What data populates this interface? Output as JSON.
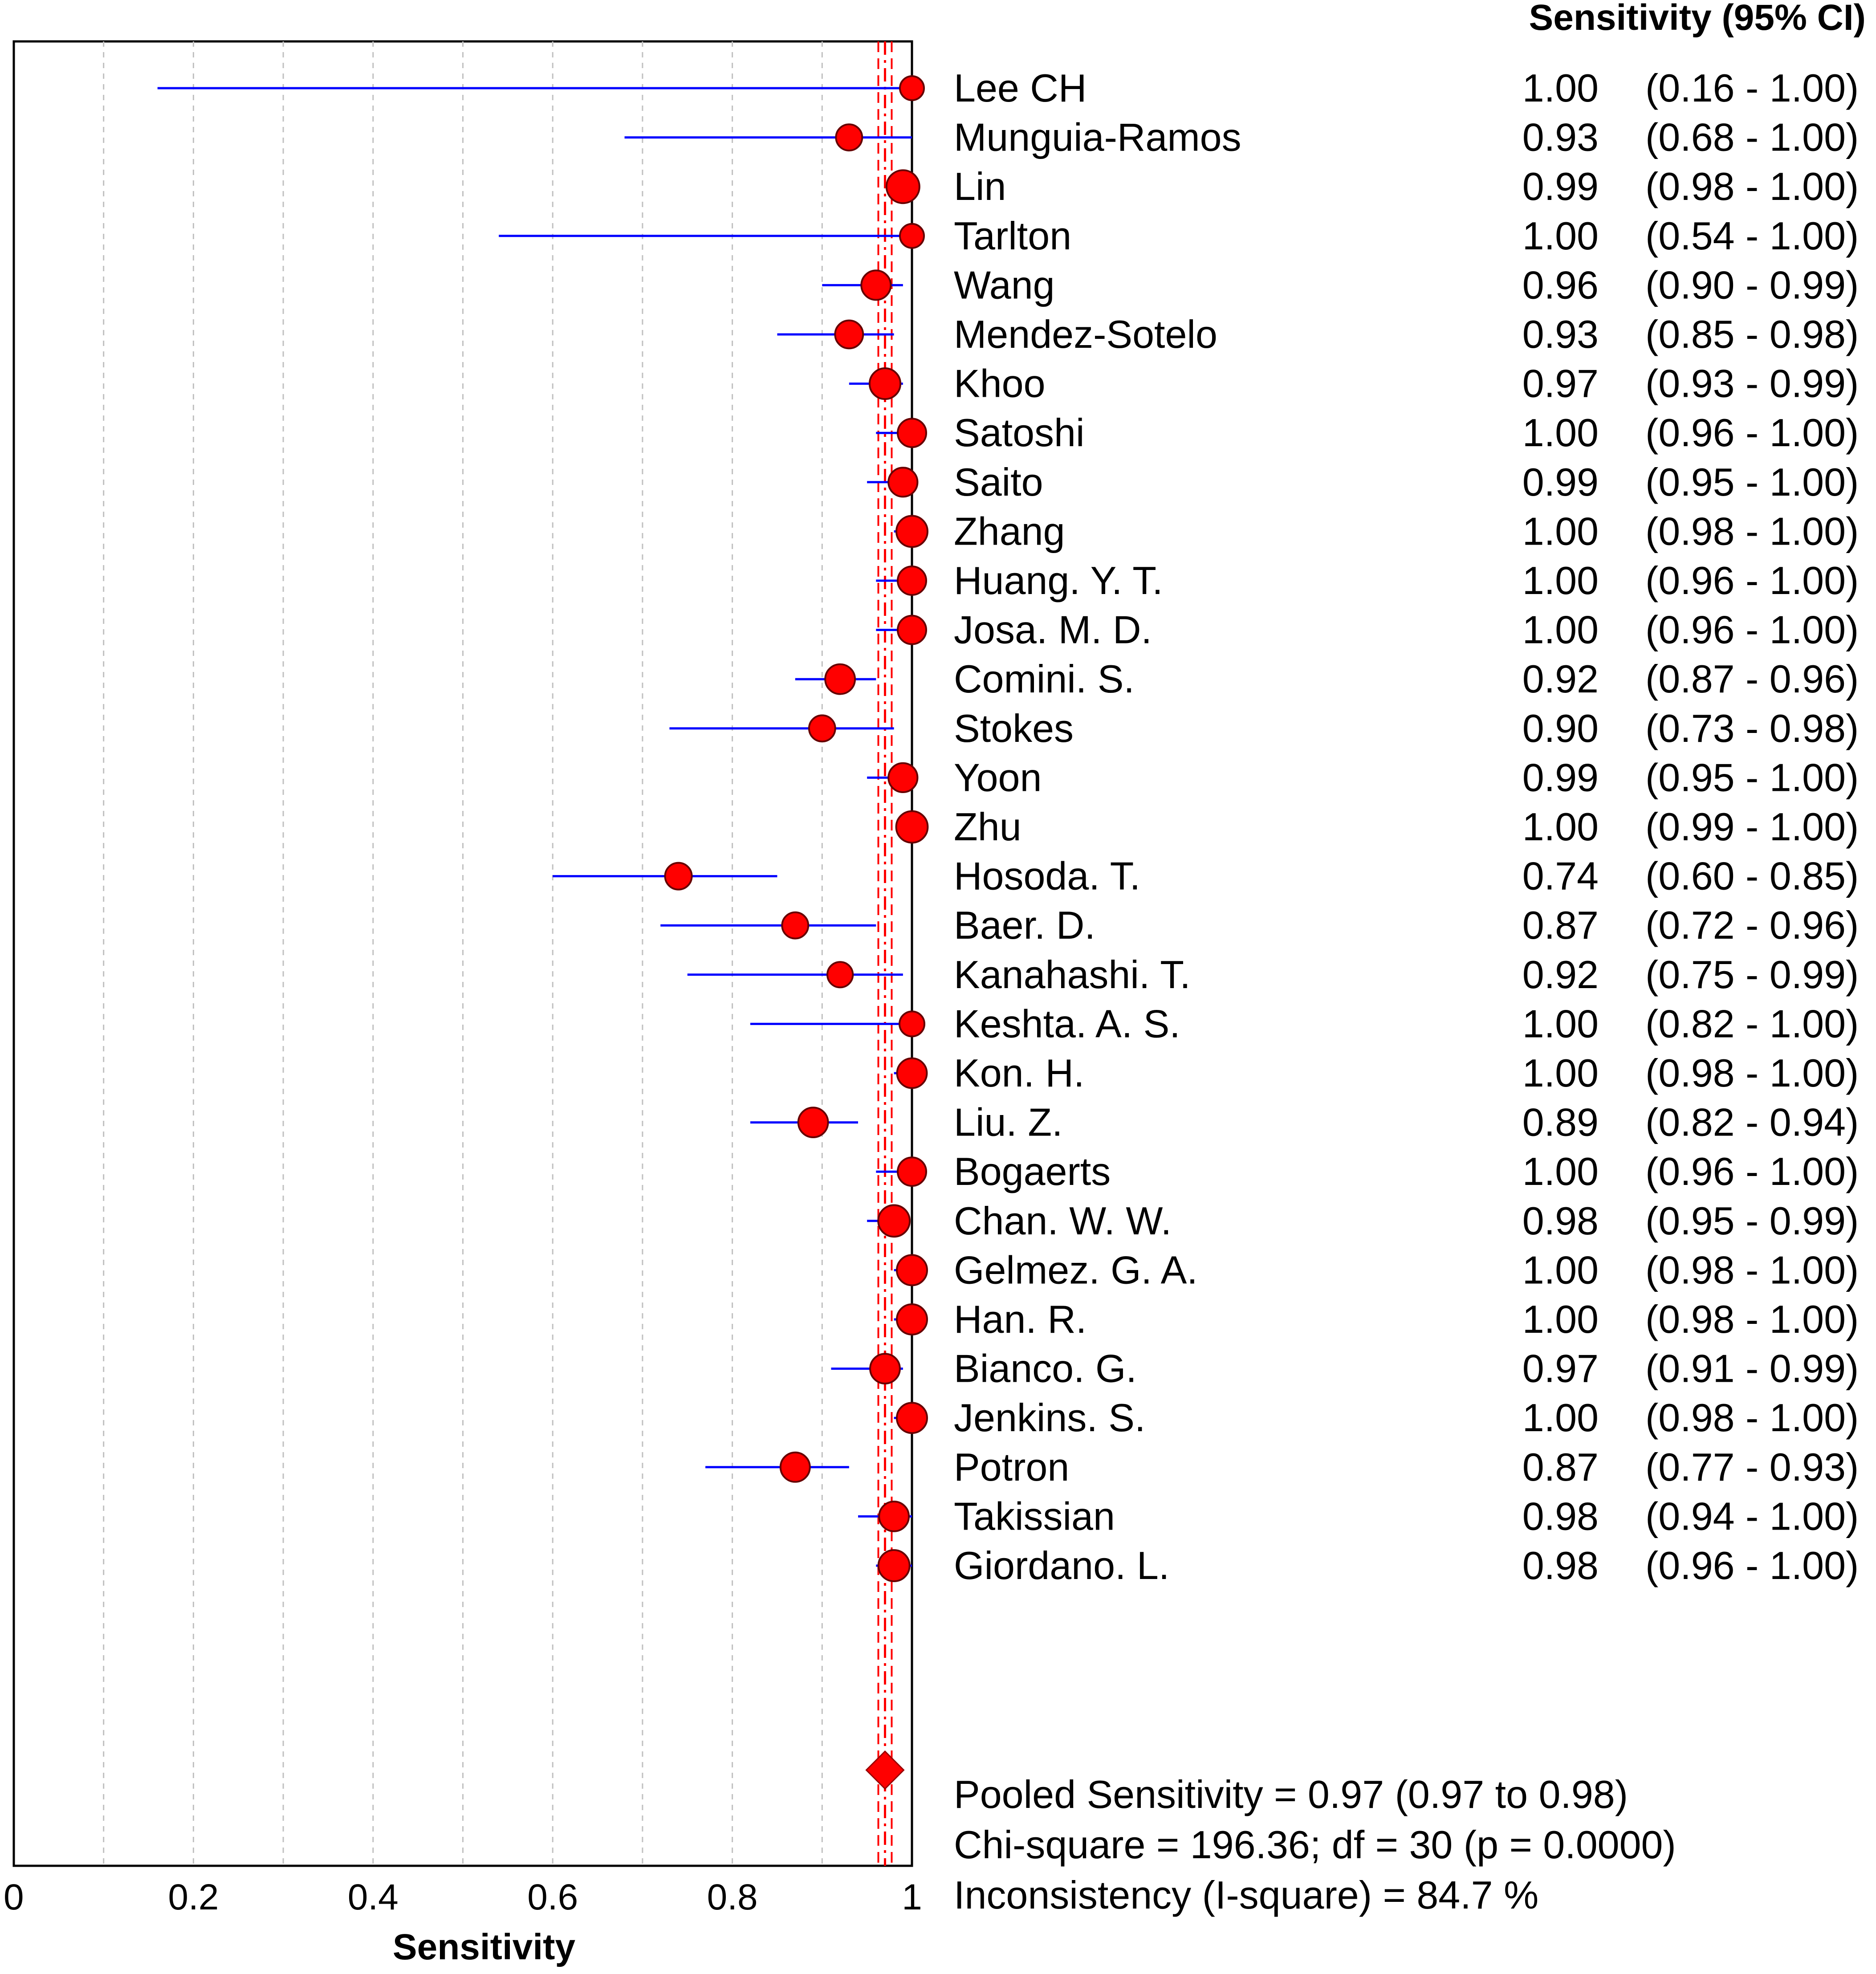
{
  "chart_data": {
    "type": "forest",
    "title": "Sensitivity (95% CI)",
    "xlabel": "Sensitivity",
    "xlim": [
      0,
      1
    ],
    "xticks": [
      "0",
      "0.2",
      "0.4",
      "0.6",
      "0.8",
      "1"
    ],
    "studies": [
      {
        "name": "Lee CH",
        "value": "1.00",
        "ci": "(0.16 - 1.00)",
        "est": 1.0,
        "lo": 0.16,
        "hi": 1.0,
        "weight": 0.5
      },
      {
        "name": "Munguia-Ramos",
        "value": "0.93",
        "ci": "(0.68 - 1.00)",
        "est": 0.93,
        "lo": 0.68,
        "hi": 1.0,
        "weight": 0.62
      },
      {
        "name": "Lin",
        "value": "0.99",
        "ci": "(0.98 - 1.00)",
        "est": 0.99,
        "lo": 0.98,
        "hi": 1.0,
        "weight": 1.0
      },
      {
        "name": "Tarlton",
        "value": "1.00",
        "ci": "(0.54 - 1.00)",
        "est": 1.0,
        "lo": 0.54,
        "hi": 1.0,
        "weight": 0.5
      },
      {
        "name": "Wang",
        "value": "0.96",
        "ci": "(0.90 - 0.99)",
        "est": 0.96,
        "lo": 0.9,
        "hi": 0.99,
        "weight": 0.8
      },
      {
        "name": "Mendez-Sotelo",
        "value": "0.93",
        "ci": "(0.85 - 0.98)",
        "est": 0.93,
        "lo": 0.85,
        "hi": 0.98,
        "weight": 0.72
      },
      {
        "name": "Khoo",
        "value": "0.97",
        "ci": "(0.93 - 0.99)",
        "est": 0.97,
        "lo": 0.93,
        "hi": 0.99,
        "weight": 0.88
      },
      {
        "name": "Satoshi",
        "value": "1.00",
        "ci": "(0.96 - 1.00)",
        "est": 1.0,
        "lo": 0.96,
        "hi": 1.0,
        "weight": 0.75
      },
      {
        "name": "Saito",
        "value": "0.99",
        "ci": "(0.95 - 1.00)",
        "est": 0.99,
        "lo": 0.95,
        "hi": 1.0,
        "weight": 0.78
      },
      {
        "name": "Zhang",
        "value": "1.00",
        "ci": "(0.98 - 1.00)",
        "est": 1.0,
        "lo": 0.98,
        "hi": 1.0,
        "weight": 0.9
      },
      {
        "name": "Huang. Y. T.",
        "value": "1.00",
        "ci": "(0.96 - 1.00)",
        "est": 1.0,
        "lo": 0.96,
        "hi": 1.0,
        "weight": 0.75
      },
      {
        "name": "Josa. M. D.",
        "value": "1.00",
        "ci": "(0.96 - 1.00)",
        "est": 1.0,
        "lo": 0.96,
        "hi": 1.0,
        "weight": 0.75
      },
      {
        "name": "Comini. S.",
        "value": "0.92",
        "ci": "(0.87 - 0.96)",
        "est": 0.92,
        "lo": 0.87,
        "hi": 0.96,
        "weight": 0.82
      },
      {
        "name": "Stokes",
        "value": "0.90",
        "ci": "(0.73 - 0.98)",
        "est": 0.9,
        "lo": 0.73,
        "hi": 0.98,
        "weight": 0.62
      },
      {
        "name": "Yoon",
        "value": "0.99",
        "ci": "(0.95 - 1.00)",
        "est": 0.99,
        "lo": 0.95,
        "hi": 1.0,
        "weight": 0.78
      },
      {
        "name": "Zhu",
        "value": "1.00",
        "ci": "(0.99 - 1.00)",
        "est": 1.0,
        "lo": 0.99,
        "hi": 1.0,
        "weight": 0.92
      },
      {
        "name": "Hosoda. T.",
        "value": "0.74",
        "ci": "(0.60 - 0.85)",
        "est": 0.74,
        "lo": 0.6,
        "hi": 0.85,
        "weight": 0.65
      },
      {
        "name": "Baer. D.",
        "value": "0.87",
        "ci": "(0.72 - 0.96)",
        "est": 0.87,
        "lo": 0.72,
        "hi": 0.96,
        "weight": 0.62
      },
      {
        "name": "Kanahashi. T.",
        "value": "0.92",
        "ci": "(0.75 - 0.99)",
        "est": 0.92,
        "lo": 0.75,
        "hi": 0.99,
        "weight": 0.58
      },
      {
        "name": "Keshta. A. S.",
        "value": "1.00",
        "ci": "(0.82 - 1.00)",
        "est": 1.0,
        "lo": 0.82,
        "hi": 1.0,
        "weight": 0.55
      },
      {
        "name": "Kon. H.",
        "value": "1.00",
        "ci": "(0.98 - 1.00)",
        "est": 1.0,
        "lo": 0.98,
        "hi": 1.0,
        "weight": 0.82
      },
      {
        "name": "Liu. Z.",
        "value": "0.89",
        "ci": "(0.82 - 0.94)",
        "est": 0.89,
        "lo": 0.82,
        "hi": 0.94,
        "weight": 0.82
      },
      {
        "name": "Bogaerts",
        "value": "1.00",
        "ci": "(0.96 - 1.00)",
        "est": 1.0,
        "lo": 0.96,
        "hi": 1.0,
        "weight": 0.75
      },
      {
        "name": "Chan. W. W.",
        "value": "0.98",
        "ci": "(0.95 - 0.99)",
        "est": 0.98,
        "lo": 0.95,
        "hi": 0.99,
        "weight": 0.92
      },
      {
        "name": "Gelmez. G. A.",
        "value": "1.00",
        "ci": "(0.98 - 1.00)",
        "est": 1.0,
        "lo": 0.98,
        "hi": 1.0,
        "weight": 0.85
      },
      {
        "name": "Han. R.",
        "value": "1.00",
        "ci": "(0.98 - 1.00)",
        "est": 1.0,
        "lo": 0.98,
        "hi": 1.0,
        "weight": 0.85
      },
      {
        "name": "Bianco. G.",
        "value": "0.97",
        "ci": "(0.91 - 0.99)",
        "est": 0.97,
        "lo": 0.91,
        "hi": 0.99,
        "weight": 0.82
      },
      {
        "name": "Jenkins. S.",
        "value": "1.00",
        "ci": "(0.98 - 1.00)",
        "est": 1.0,
        "lo": 0.98,
        "hi": 1.0,
        "weight": 0.85
      },
      {
        "name": "Potron",
        "value": "0.87",
        "ci": "(0.77 - 0.93)",
        "est": 0.87,
        "lo": 0.77,
        "hi": 0.93,
        "weight": 0.8
      },
      {
        "name": "Takissian",
        "value": "0.98",
        "ci": "(0.94 - 1.00)",
        "est": 0.98,
        "lo": 0.94,
        "hi": 1.0,
        "weight": 0.82
      },
      {
        "name": "Giordano. L.",
        "value": "0.98",
        "ci": "(0.96 - 1.00)",
        "est": 0.98,
        "lo": 0.96,
        "hi": 1.0,
        "weight": 0.9
      }
    ],
    "pooled": {
      "est": 0.97,
      "lo": 0.97,
      "hi": 0.98
    },
    "summary": [
      "Pooled Sensitivity = 0.97 (0.97 to 0.98)",
      "Chi-square = 196.36; df =  30 (p = 0.0000)",
      "Inconsistency (I-square) = 84.7 %"
    ],
    "colors": {
      "marker": "#ff0000",
      "ci_line": "#0000ff",
      "pooled_line": "#ff0000",
      "grid": "#c0c0c0",
      "axis": "#000000"
    }
  }
}
